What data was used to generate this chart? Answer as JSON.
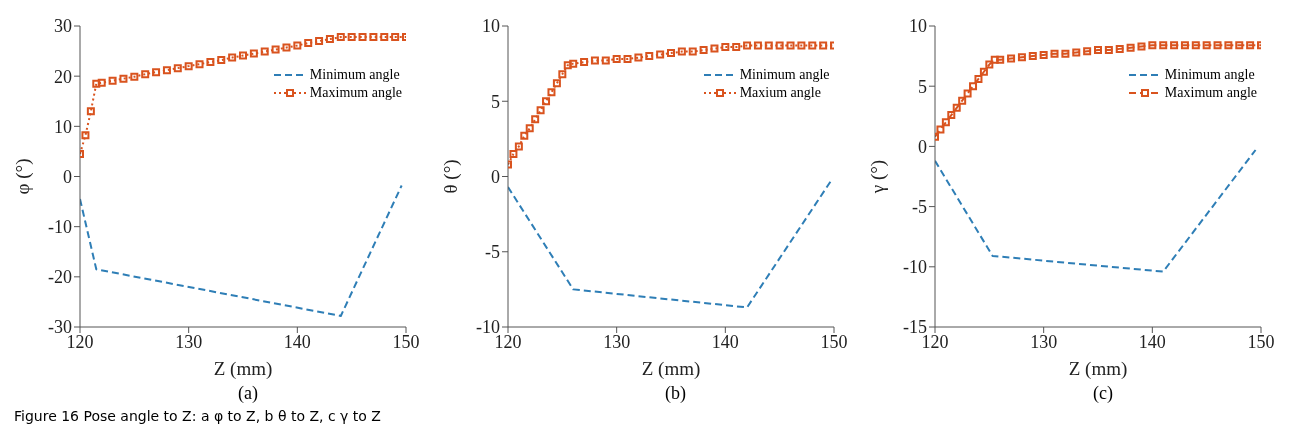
{
  "chart_data": [
    {
      "type": "line",
      "subtitle": "(a)",
      "xlabel": "Z (mm)",
      "ylabel": "φ (°)",
      "xlim": [
        120,
        150
      ],
      "xticks": [
        120,
        130,
        140,
        150
      ],
      "ylim": [
        -30,
        30
      ],
      "yticks": [
        -30,
        -20,
        -10,
        0,
        10,
        20,
        30
      ],
      "legend": "top right",
      "annotations": [
        "Figure 16 Pose angle to Z: a φ to Z, b θ to Z, c γ to Z"
      ],
      "series": [
        {
          "name": "Minimum angle",
          "color": "#2e7eb6",
          "line_style": "dashed",
          "marker": "none",
          "x": [
            120,
            121.5,
            144,
            149.6
          ],
          "values": [
            -4.5,
            -18.5,
            -27.8,
            -1.8
          ]
        },
        {
          "name": "Maximum angle",
          "color": "#d9531e",
          "line_style": "dotted",
          "marker": "square",
          "x": [
            120,
            120.5,
            121,
            121.5,
            122,
            123,
            124,
            125,
            126,
            127,
            128,
            129,
            130,
            131,
            132,
            133,
            134,
            135,
            136,
            137,
            138,
            139,
            140,
            141,
            142,
            143,
            144,
            145,
            146,
            147,
            148,
            149,
            150
          ],
          "values": [
            4.5,
            8.2,
            13,
            18.5,
            18.7,
            19.1,
            19.5,
            19.9,
            20.4,
            20.8,
            21.2,
            21.6,
            22,
            22.4,
            22.8,
            23.2,
            23.7,
            24.1,
            24.5,
            24.9,
            25.3,
            25.7,
            26.1,
            26.6,
            27,
            27.4,
            27.8,
            27.8,
            27.8,
            27.8,
            27.8,
            27.8,
            27.8
          ]
        }
      ]
    },
    {
      "type": "line",
      "subtitle": "(b)",
      "xlabel": "Z (mm)",
      "ylabel": "θ (°)",
      "xlim": [
        120,
        150
      ],
      "xticks": [
        120,
        130,
        140,
        150
      ],
      "ylim": [
        -10,
        10
      ],
      "yticks": [
        -10,
        -5,
        0,
        5,
        10
      ],
      "legend": "top right",
      "series": [
        {
          "name": "Minimum angle",
          "color": "#2e7eb6",
          "line_style": "dashed",
          "marker": "none",
          "x": [
            120,
            126,
            142,
            149.8
          ],
          "values": [
            -0.7,
            -7.5,
            -8.7,
            -0.2
          ]
        },
        {
          "name": "Maxium angle",
          "color": "#d9531e",
          "line_style": "dotted",
          "marker": "square",
          "x": [
            120,
            120.5,
            121,
            121.5,
            122,
            122.5,
            123,
            123.5,
            124,
            124.5,
            125,
            125.5,
            126,
            127,
            128,
            129,
            130,
            131,
            132,
            133,
            134,
            135,
            136,
            137,
            138,
            139,
            140,
            141,
            142,
            143,
            144,
            145,
            146,
            147,
            148,
            149,
            150
          ],
          "values": [
            0.8,
            1.5,
            2,
            2.7,
            3.2,
            3.8,
            4.4,
            5,
            5.6,
            6.2,
            6.8,
            7.4,
            7.5,
            7.6,
            7.7,
            7.7,
            7.8,
            7.8,
            7.9,
            8,
            8.1,
            8.2,
            8.3,
            8.3,
            8.4,
            8.5,
            8.6,
            8.6,
            8.7,
            8.7,
            8.7,
            8.7,
            8.7,
            8.7,
            8.7,
            8.7,
            8.7
          ]
        }
      ]
    },
    {
      "type": "line",
      "subtitle": "(c)",
      "xlabel": "Z (mm)",
      "ylabel": "γ (°)",
      "xlim": [
        120,
        150
      ],
      "xticks": [
        120,
        130,
        140,
        150
      ],
      "ylim": [
        -15,
        10
      ],
      "yticks": [
        -15,
        -10,
        -5,
        0,
        5,
        10
      ],
      "legend": "top right",
      "series": [
        {
          "name": "Minimum angle",
          "color": "#2e7eb6",
          "line_style": "dashed",
          "marker": "none",
          "x": [
            120,
            125.3,
            141,
            149.5
          ],
          "values": [
            -1.2,
            -9.1,
            -10.4,
            -0.3
          ]
        },
        {
          "name": "Maximum angle",
          "color": "#d9531e",
          "line_style": "dashed",
          "marker": "square",
          "x": [
            120,
            120.5,
            121,
            121.5,
            122,
            122.5,
            123,
            123.5,
            124,
            124.5,
            125,
            125.5,
            126,
            127,
            128,
            129,
            130,
            131,
            132,
            133,
            134,
            135,
            136,
            137,
            138,
            139,
            140,
            141,
            142,
            143,
            144,
            145,
            146,
            147,
            148,
            149,
            150
          ],
          "values": [
            0.8,
            1.4,
            2,
            2.6,
            3.2,
            3.8,
            4.4,
            5,
            5.6,
            6.2,
            6.8,
            7.2,
            7.2,
            7.3,
            7.4,
            7.5,
            7.6,
            7.7,
            7.7,
            7.8,
            7.9,
            8,
            8,
            8.1,
            8.2,
            8.3,
            8.4,
            8.4,
            8.4,
            8.4,
            8.4,
            8.4,
            8.4,
            8.4,
            8.4,
            8.4,
            8.4
          ]
        }
      ]
    }
  ]
}
